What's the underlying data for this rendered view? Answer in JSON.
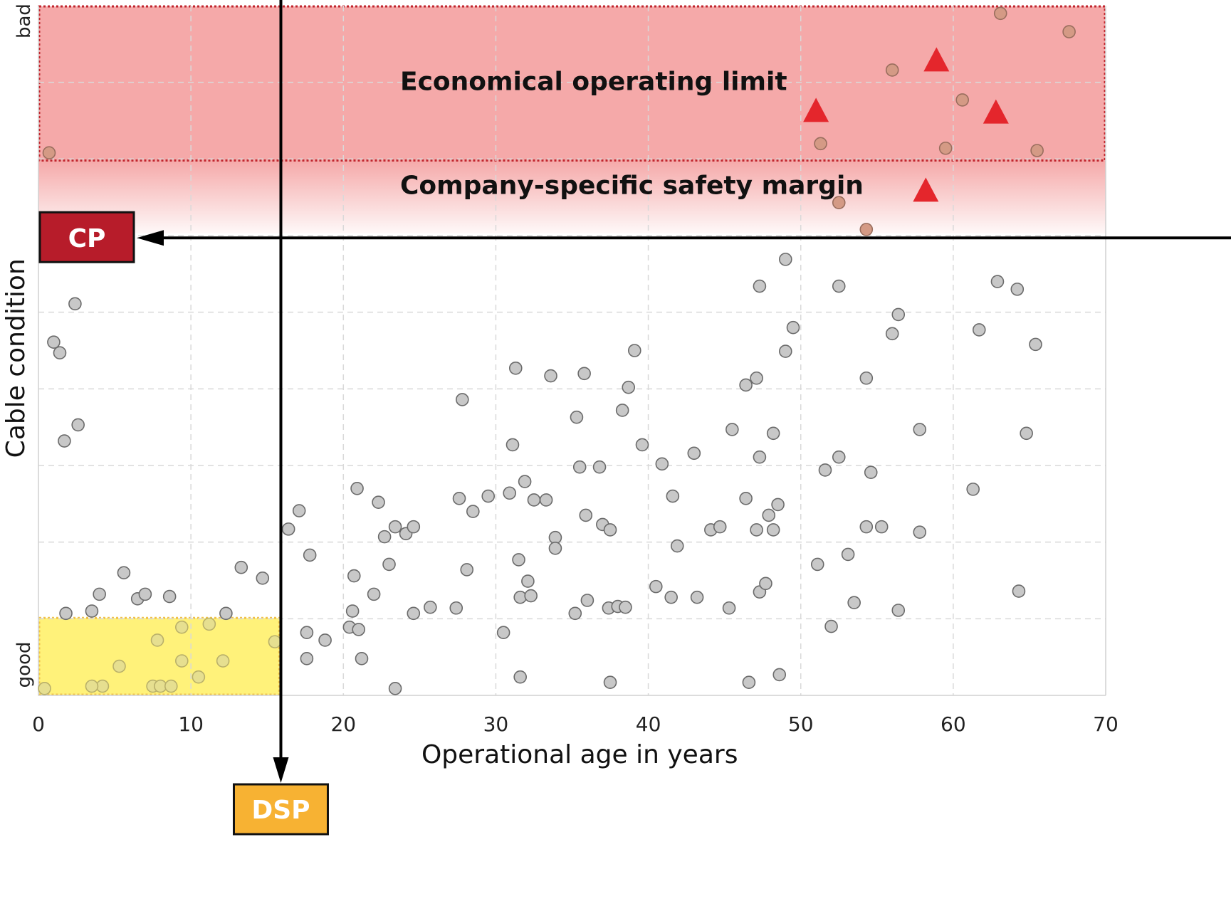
{
  "chart_data": {
    "type": "scatter",
    "xlabel": "Operational age in years",
    "ylabel": "Cable condition",
    "xlim": [
      0,
      70
    ],
    "ylim": [
      0,
      9
    ],
    "xticks": [
      0,
      10,
      20,
      30,
      40,
      50,
      60,
      70
    ],
    "y_tick_labels": {
      "bottom": "good",
      "top": "bad"
    },
    "grid": true,
    "zones": {
      "economical_limit": {
        "label": "Economical operating limit",
        "y_from": 6.98,
        "y_to": 9.0,
        "color": "#f5a9a9"
      },
      "safety_margin": {
        "label": "Company-specific safety margin",
        "y_from": 6.03,
        "y_to": 6.98
      },
      "dsp_zone": {
        "x_from": 0,
        "x_to": 15.8,
        "y_from": 0,
        "y_to": 1.01,
        "color": "#fff27a"
      }
    },
    "markers": {
      "cp": {
        "label": "CP",
        "y": 5.97,
        "color": "#b71c2a"
      },
      "dsp": {
        "label": "DSP",
        "x": 15.9,
        "color": "#f7b233"
      }
    },
    "series": [
      {
        "marker": "circle",
        "color": "#c8c8c8",
        "points": [
          [
            0.7,
            7.08
          ],
          [
            1.0,
            4.61
          ],
          [
            1.4,
            4.47
          ],
          [
            2.4,
            5.11
          ],
          [
            2.6,
            3.53
          ],
          [
            1.7,
            3.32
          ],
          [
            1.8,
            1.07
          ],
          [
            3.5,
            1.1
          ],
          [
            4.0,
            1.32
          ],
          [
            5.6,
            1.6
          ],
          [
            6.5,
            1.26
          ],
          [
            7.0,
            1.32
          ],
          [
            8.6,
            1.29
          ],
          [
            12.3,
            1.07
          ],
          [
            13.3,
            1.67
          ],
          [
            14.7,
            1.53
          ],
          [
            16.4,
            2.17
          ],
          [
            17.1,
            2.41
          ],
          [
            17.8,
            1.83
          ],
          [
            17.6,
            0.82
          ],
          [
            17.6,
            0.48
          ],
          [
            18.8,
            0.72
          ],
          [
            20.4,
            0.89
          ],
          [
            20.6,
            1.1
          ],
          [
            20.7,
            1.56
          ],
          [
            21.0,
            0.86
          ],
          [
            21.2,
            0.48
          ],
          [
            20.9,
            2.7
          ],
          [
            22.0,
            1.32
          ],
          [
            22.3,
            2.52
          ],
          [
            22.7,
            2.07
          ],
          [
            23.0,
            1.71
          ],
          [
            23.4,
            2.2
          ],
          [
            24.1,
            2.11
          ],
          [
            24.6,
            2.2
          ],
          [
            24.6,
            1.07
          ],
          [
            25.7,
            1.15
          ],
          [
            23.4,
            0.09
          ],
          [
            27.4,
            1.14
          ],
          [
            27.6,
            2.57
          ],
          [
            27.8,
            3.86
          ],
          [
            28.1,
            1.64
          ],
          [
            28.5,
            2.4
          ],
          [
            29.5,
            2.6
          ],
          [
            30.5,
            0.82
          ],
          [
            30.9,
            2.64
          ],
          [
            31.1,
            3.27
          ],
          [
            31.3,
            4.27
          ],
          [
            31.5,
            1.77
          ],
          [
            31.6,
            1.28
          ],
          [
            31.6,
            0.24
          ],
          [
            31.9,
            2.79
          ],
          [
            32.1,
            1.49
          ],
          [
            32.3,
            1.3
          ],
          [
            32.5,
            2.55
          ],
          [
            33.3,
            2.55
          ],
          [
            33.6,
            4.17
          ],
          [
            33.9,
            2.06
          ],
          [
            33.9,
            1.92
          ],
          [
            35.2,
            1.07
          ],
          [
            35.3,
            3.63
          ],
          [
            35.5,
            2.98
          ],
          [
            35.8,
            4.2
          ],
          [
            35.9,
            2.35
          ],
          [
            36.0,
            1.24
          ],
          [
            36.8,
            2.98
          ],
          [
            37.0,
            2.23
          ],
          [
            37.4,
            1.14
          ],
          [
            37.5,
            2.16
          ],
          [
            37.5,
            0.17
          ],
          [
            38.0,
            1.16
          ],
          [
            38.3,
            3.72
          ],
          [
            38.5,
            1.15
          ],
          [
            38.7,
            4.02
          ],
          [
            39.1,
            4.5
          ],
          [
            39.6,
            3.27
          ],
          [
            40.5,
            1.42
          ],
          [
            40.9,
            3.02
          ],
          [
            41.6,
            2.6
          ],
          [
            41.5,
            1.28
          ],
          [
            41.9,
            1.95
          ],
          [
            43.0,
            3.16
          ],
          [
            43.2,
            1.28
          ],
          [
            44.1,
            2.16
          ],
          [
            44.7,
            2.2
          ],
          [
            45.3,
            1.14
          ],
          [
            45.5,
            3.47
          ],
          [
            46.4,
            4.05
          ],
          [
            46.4,
            2.57
          ],
          [
            46.6,
            0.17
          ],
          [
            47.1,
            4.14
          ],
          [
            47.1,
            2.16
          ],
          [
            47.3,
            5.34
          ],
          [
            47.3,
            3.11
          ],
          [
            47.3,
            1.35
          ],
          [
            47.7,
            1.46
          ],
          [
            47.9,
            2.35
          ],
          [
            48.2,
            3.42
          ],
          [
            48.2,
            2.16
          ],
          [
            48.5,
            2.49
          ],
          [
            48.6,
            0.27
          ],
          [
            49.0,
            5.69
          ],
          [
            49.0,
            4.49
          ],
          [
            49.5,
            4.8
          ],
          [
            51.1,
            1.71
          ],
          [
            51.6,
            2.94
          ],
          [
            52.0,
            0.9
          ],
          [
            52.5,
            5.34
          ],
          [
            52.5,
            3.11
          ],
          [
            53.1,
            1.84
          ],
          [
            53.5,
            1.21
          ],
          [
            54.3,
            4.14
          ],
          [
            54.3,
            2.2
          ],
          [
            54.6,
            2.91
          ],
          [
            55.3,
            2.2
          ],
          [
            56.0,
            4.72
          ],
          [
            56.4,
            4.97
          ],
          [
            56.4,
            1.11
          ],
          [
            57.8,
            3.47
          ],
          [
            57.8,
            2.13
          ],
          [
            61.3,
            2.69
          ],
          [
            61.7,
            4.77
          ],
          [
            62.9,
            5.4
          ],
          [
            64.2,
            5.3
          ],
          [
            64.3,
            1.36
          ],
          [
            64.8,
            3.42
          ],
          [
            65.4,
            4.58
          ],
          [
            4.2,
            0.12
          ],
          [
            7.5,
            0.12
          ],
          [
            8.0,
            0.12
          ],
          [
            8.7,
            0.12
          ],
          [
            10.5,
            0.24
          ],
          [
            12.1,
            0.45
          ],
          [
            9.4,
            0.45
          ],
          [
            5.3,
            0.38
          ],
          [
            7.8,
            0.72
          ],
          [
            9.4,
            0.89
          ],
          [
            11.2,
            0.93
          ],
          [
            15.5,
            0.7
          ],
          [
            3.5,
            0.12
          ],
          [
            0.4,
            0.09
          ],
          [
            51.3,
            7.2
          ],
          [
            52.5,
            6.43
          ],
          [
            54.3,
            6.08
          ],
          [
            56.0,
            8.16
          ],
          [
            59.5,
            7.14
          ],
          [
            60.6,
            7.77
          ],
          [
            63.1,
            8.9
          ],
          [
            65.5,
            7.11
          ],
          [
            67.6,
            8.66
          ]
        ]
      },
      {
        "marker": "triangle",
        "color": "#e4262c",
        "points": [
          [
            51.0,
            7.64
          ],
          [
            58.9,
            8.3
          ],
          [
            62.8,
            7.62
          ],
          [
            58.2,
            6.6
          ]
        ]
      }
    ]
  }
}
